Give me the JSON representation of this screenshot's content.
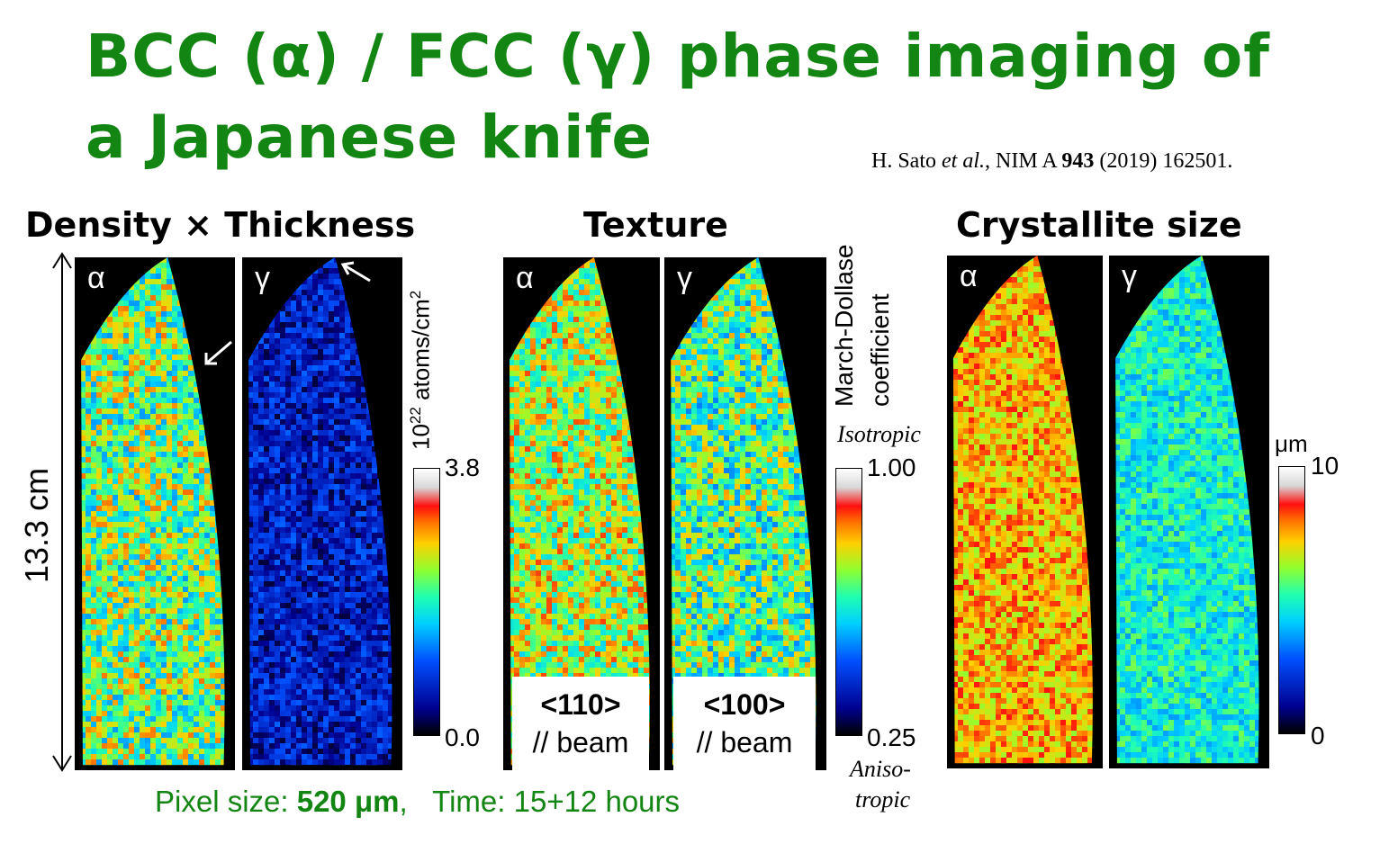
{
  "title": {
    "line1": "BCC (α) / FCC (γ) phase imaging of",
    "line2": "a Japanese knife"
  },
  "citation": {
    "authors": "H. Sato",
    "etal": "et al.",
    "journal": ", NIM A ",
    "volume": "943",
    "rest": " (2019) 162501."
  },
  "sections": {
    "density": {
      "heading": "Density × Thickness",
      "scale_length": "13.3 cm",
      "colorbar": {
        "label_prefix": "10",
        "label_exp": "22",
        "label_unit": " atoms/cm",
        "label_unit_exp": "2",
        "max": "3.8",
        "min": "0.0"
      }
    },
    "texture": {
      "heading": "Texture",
      "colorbar": {
        "label_line1": "March-Dollase",
        "label_line2": "coefficient",
        "max": "1.00",
        "min": "0.25",
        "top_note": "Isotropic",
        "bottom_note_1": "Aniso-",
        "bottom_note_2": "tropic"
      },
      "alpha_direction": "<110>",
      "gamma_direction": "<100>",
      "beam_label": "// beam"
    },
    "crystallite": {
      "heading": "Crystallite size",
      "colorbar": {
        "unit": "μm",
        "max": "10",
        "min": "0"
      }
    }
  },
  "phase_labels": {
    "alpha": "α",
    "gamma": "γ"
  },
  "footer": {
    "pixel_label": "Pixel size: ",
    "pixel_value": "520 μm",
    "separator": ",",
    "time_label": "Time: 15+12 hours"
  },
  "colors": {
    "title": "#138513",
    "footer": "#138513"
  },
  "panels": [
    {
      "id": "density-alpha",
      "base_level": 0.58,
      "spread": 0.22
    },
    {
      "id": "density-gamma",
      "base_level": 0.17,
      "spread": 0.13
    },
    {
      "id": "texture-alpha",
      "base_level": 0.63,
      "spread": 0.2
    },
    {
      "id": "texture-gamma",
      "base_level": 0.55,
      "spread": 0.22
    },
    {
      "id": "crystallite-alpha",
      "base_level": 0.74,
      "spread": 0.12
    },
    {
      "id": "crystallite-gamma",
      "base_level": 0.48,
      "spread": 0.12
    }
  ]
}
